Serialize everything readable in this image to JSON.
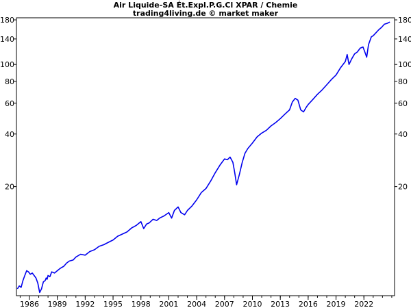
{
  "chart_data": {
    "type": "line",
    "title": "Air Liquide-SA Ét.Expl.P.G.Cl XPAR / Chemie",
    "subtitle": "trading4living.de © market maker",
    "xlabel": "",
    "ylabel": "",
    "y_scale": "log",
    "ylim": [
      4.75,
      185
    ],
    "xlim": [
      1984.6,
      2025.3
    ],
    "y_ticks": [
      20,
      40,
      60,
      80,
      100,
      140,
      180
    ],
    "x_ticks": [
      1986,
      1989,
      1992,
      1995,
      1998,
      2001,
      2004,
      2007,
      2010,
      2013,
      2016,
      2019,
      2022
    ],
    "grid": false,
    "line_color": "#0000ee",
    "series": [
      {
        "x": [
          1984.7,
          1984.9,
          1985.1,
          1985.3,
          1985.5,
          1985.7,
          1985.9,
          1986.1,
          1986.3,
          1986.5,
          1986.7,
          1986.9,
          1987.1,
          1987.3,
          1987.5,
          1987.7,
          1987.8,
          1987.9,
          1988.0,
          1988.2,
          1988.4,
          1988.7,
          1989.0,
          1989.3,
          1989.7,
          1990.0,
          1990.3,
          1990.7,
          1991.0,
          1991.5,
          1992.0,
          1992.5,
          1993.0,
          1993.5,
          1994.0,
          1994.5,
          1995.0,
          1995.5,
          1996.0,
          1996.5,
          1997.0,
          1997.5,
          1998.0,
          1998.3,
          1998.6,
          1998.9,
          1999.3,
          1999.7,
          2000.0,
          2000.5,
          2001.0,
          2001.3,
          2001.6,
          2002.0,
          2002.3,
          2002.7,
          2003.0,
          2003.5,
          2004.0,
          2004.5,
          2005.0,
          2005.5,
          2006.0,
          2006.5,
          2007.0,
          2007.3,
          2007.6,
          2007.9,
          2008.1,
          2008.3,
          2008.6,
          2008.9,
          2009.2,
          2009.5,
          2010.0,
          2010.5,
          2011.0,
          2011.5,
          2012.0,
          2012.5,
          2013.0,
          2013.5,
          2014.0,
          2014.3,
          2014.6,
          2014.9,
          2015.2,
          2015.5,
          2015.8,
          2016.0,
          2016.5,
          2017.0,
          2017.5,
          2018.0,
          2018.5,
          2019.0,
          2019.5,
          2020.0,
          2020.2,
          2020.4,
          2020.7,
          2021.0,
          2021.3,
          2021.6,
          2021.9,
          2022.1,
          2022.3,
          2022.5,
          2022.8,
          2023.0,
          2023.3,
          2023.6,
          2023.9,
          2024.2,
          2024.5,
          2024.8
        ],
        "y": [
          5.2,
          5.4,
          5.3,
          5.8,
          6.2,
          6.6,
          6.5,
          6.3,
          6.4,
          6.2,
          6.0,
          5.6,
          4.95,
          5.2,
          5.7,
          5.8,
          6.0,
          5.9,
          6.2,
          6.1,
          6.5,
          6.4,
          6.6,
          6.8,
          7.0,
          7.3,
          7.5,
          7.6,
          7.9,
          8.2,
          8.1,
          8.5,
          8.7,
          9.1,
          9.3,
          9.6,
          9.9,
          10.4,
          10.7,
          11.0,
          11.6,
          12.0,
          12.6,
          11.5,
          12.2,
          12.4,
          13.0,
          12.8,
          13.2,
          13.6,
          14.2,
          13.2,
          14.6,
          15.3,
          14.2,
          13.8,
          14.6,
          15.5,
          16.8,
          18.5,
          19.5,
          21.5,
          24.0,
          26.5,
          28.8,
          28.5,
          29.5,
          27.5,
          24.0,
          20.5,
          23.5,
          27.5,
          31.0,
          33.0,
          35.5,
          38.5,
          40.5,
          42.0,
          44.5,
          46.5,
          49.0,
          52.0,
          55.0,
          61.0,
          64.0,
          62.5,
          55.0,
          53.5,
          57.0,
          59.0,
          63.0,
          67.5,
          71.5,
          76.5,
          82.0,
          87.0,
          96.0,
          104.0,
          114.0,
          100.0,
          108.0,
          115.0,
          118.0,
          124.0,
          126.0,
          118.0,
          110.0,
          130.0,
          144.0,
          146.0,
          152.0,
          158.0,
          163.0,
          170.0,
          172.0,
          175.0
        ]
      }
    ]
  }
}
